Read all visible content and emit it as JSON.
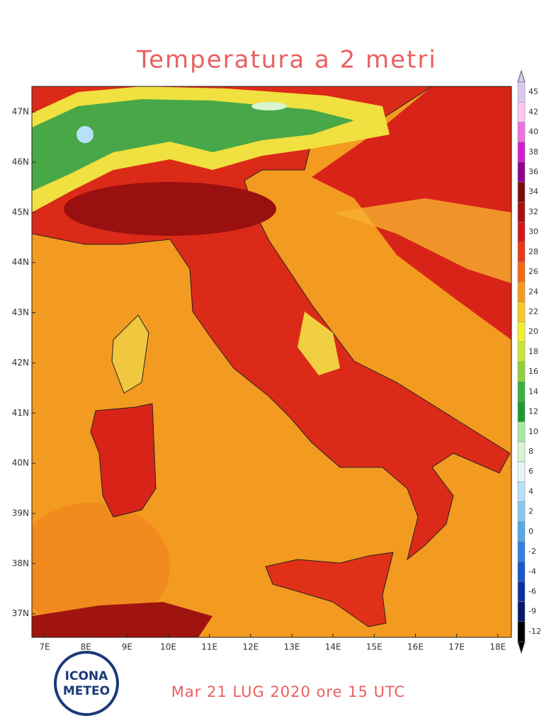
{
  "title": "Temperatura a 2 metri",
  "subtitle": "Mar 21 LUG 2020 ore 15 UTC",
  "logo": {
    "line1": "ICONA",
    "line2": "METEO"
  },
  "map": {
    "lon_lim": [
      6.69,
      18.33
    ],
    "lat_lim": [
      36.53,
      47.51
    ],
    "lat_ticks": [
      {
        "value": 47,
        "label": "47N"
      },
      {
        "value": 46,
        "label": "46N"
      },
      {
        "value": 45,
        "label": "45N"
      },
      {
        "value": 44,
        "label": "44N"
      },
      {
        "value": 43,
        "label": "43N"
      },
      {
        "value": 42,
        "label": "42N"
      },
      {
        "value": 41,
        "label": "41N"
      },
      {
        "value": 40,
        "label": "40N"
      },
      {
        "value": 39,
        "label": "39N"
      },
      {
        "value": 38,
        "label": "38N"
      },
      {
        "value": 37,
        "label": "37N"
      }
    ],
    "lon_ticks": [
      {
        "value": 7,
        "label": "7E"
      },
      {
        "value": 8,
        "label": "8E"
      },
      {
        "value": 9,
        "label": "9E"
      },
      {
        "value": 10,
        "label": "10E"
      },
      {
        "value": 11,
        "label": "11E"
      },
      {
        "value": 12,
        "label": "12E"
      },
      {
        "value": 13,
        "label": "13E"
      },
      {
        "value": 14,
        "label": "14E"
      },
      {
        "value": 15,
        "label": "15E"
      },
      {
        "value": 16,
        "label": "16E"
      },
      {
        "value": 17,
        "label": "17E"
      },
      {
        "value": 18,
        "label": "18E"
      }
    ]
  },
  "colorbar": {
    "levels": [
      45,
      42,
      40,
      38,
      36,
      34,
      32,
      30,
      28,
      26,
      24,
      22,
      20,
      18,
      16,
      14,
      12,
      10,
      8,
      6,
      4,
      2,
      0,
      -2,
      -4,
      -6,
      -9,
      -12
    ],
    "colors": [
      "#d8c8f0",
      "#f8c8f0",
      "#f070e0",
      "#d020d0",
      "#900090",
      "#7a0c0c",
      "#a81010",
      "#d01818",
      "#e83818",
      "#f06818",
      "#f59a20",
      "#f8c828",
      "#f0f030",
      "#c8e838",
      "#90d040",
      "#38b040",
      "#1e9a30",
      "#a8e8a0",
      "#d8f4d0",
      "#e8f4fc",
      "#b8e0f8",
      "#88c8f0",
      "#58a8e8",
      "#3080e0",
      "#1858c8",
      "#0c30a0",
      "#081868",
      "#000000"
    ]
  }
}
